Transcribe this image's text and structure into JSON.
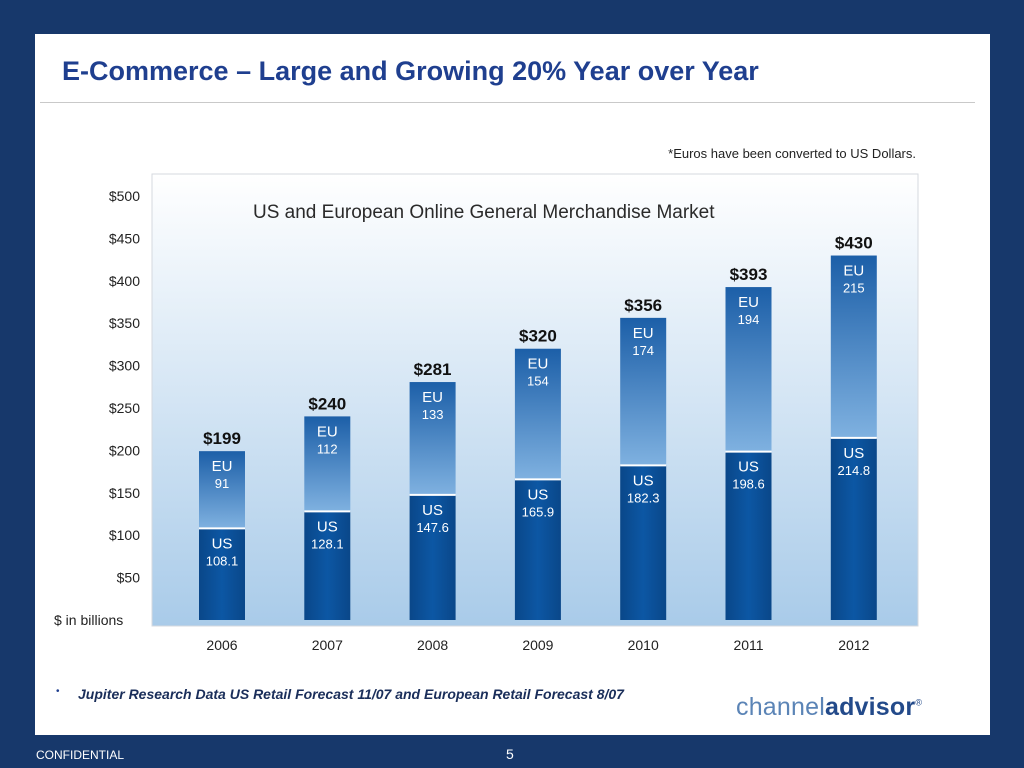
{
  "slide": {
    "title": "E-Commerce – Large and Growing 20% Year over Year",
    "note": "*Euros have been converted to US Dollars.",
    "source": "Jupiter Research Data US Retail Forecast 11/07 and European Retail Forecast 8/07",
    "bullet": "•",
    "logo_part1": "channel",
    "logo_part2": "advisor",
    "logo_mark": "®",
    "footer_left": "CONFIDENTIAL",
    "page_number": "5"
  },
  "chart_data": {
    "type": "bar",
    "title": "US and European Online General Merchandise Market",
    "ylabel": "$ in billions",
    "ylim": [
      0,
      500
    ],
    "y_ticks": [
      "$50",
      "$100",
      "$150",
      "$200",
      "$250",
      "$300",
      "$350",
      "$400",
      "$450",
      "$500"
    ],
    "y_tick_values": [
      50,
      100,
      150,
      200,
      250,
      300,
      350,
      400,
      450,
      500
    ],
    "categories": [
      "2006",
      "2007",
      "2008",
      "2009",
      "2010",
      "2011",
      "2012"
    ],
    "series": [
      {
        "name": "US",
        "values": [
          108.1,
          128.1,
          147.6,
          165.9,
          182.3,
          198.6,
          214.8
        ],
        "labels": [
          "108.1",
          "128.1",
          "147.6",
          "165.9",
          "182.3",
          "198.6",
          "214.8"
        ]
      },
      {
        "name": "EU",
        "values": [
          91,
          112,
          133,
          154,
          174,
          194,
          215
        ],
        "labels": [
          "91",
          "112",
          "133",
          "154",
          "174",
          "194",
          "215"
        ]
      }
    ],
    "totals": [
      "$199",
      "$240",
      "$281",
      "$320",
      "$356",
      "$393",
      "$430"
    ],
    "stacked": true,
    "grid": false,
    "colors": {
      "us": "#0b4d97",
      "eu_top": "#1c5fa8",
      "eu_bottom": "#7fb1e0",
      "total_label": "#111111",
      "background_top": "#ffffff",
      "background_bottom": "#a9cbe9"
    }
  }
}
